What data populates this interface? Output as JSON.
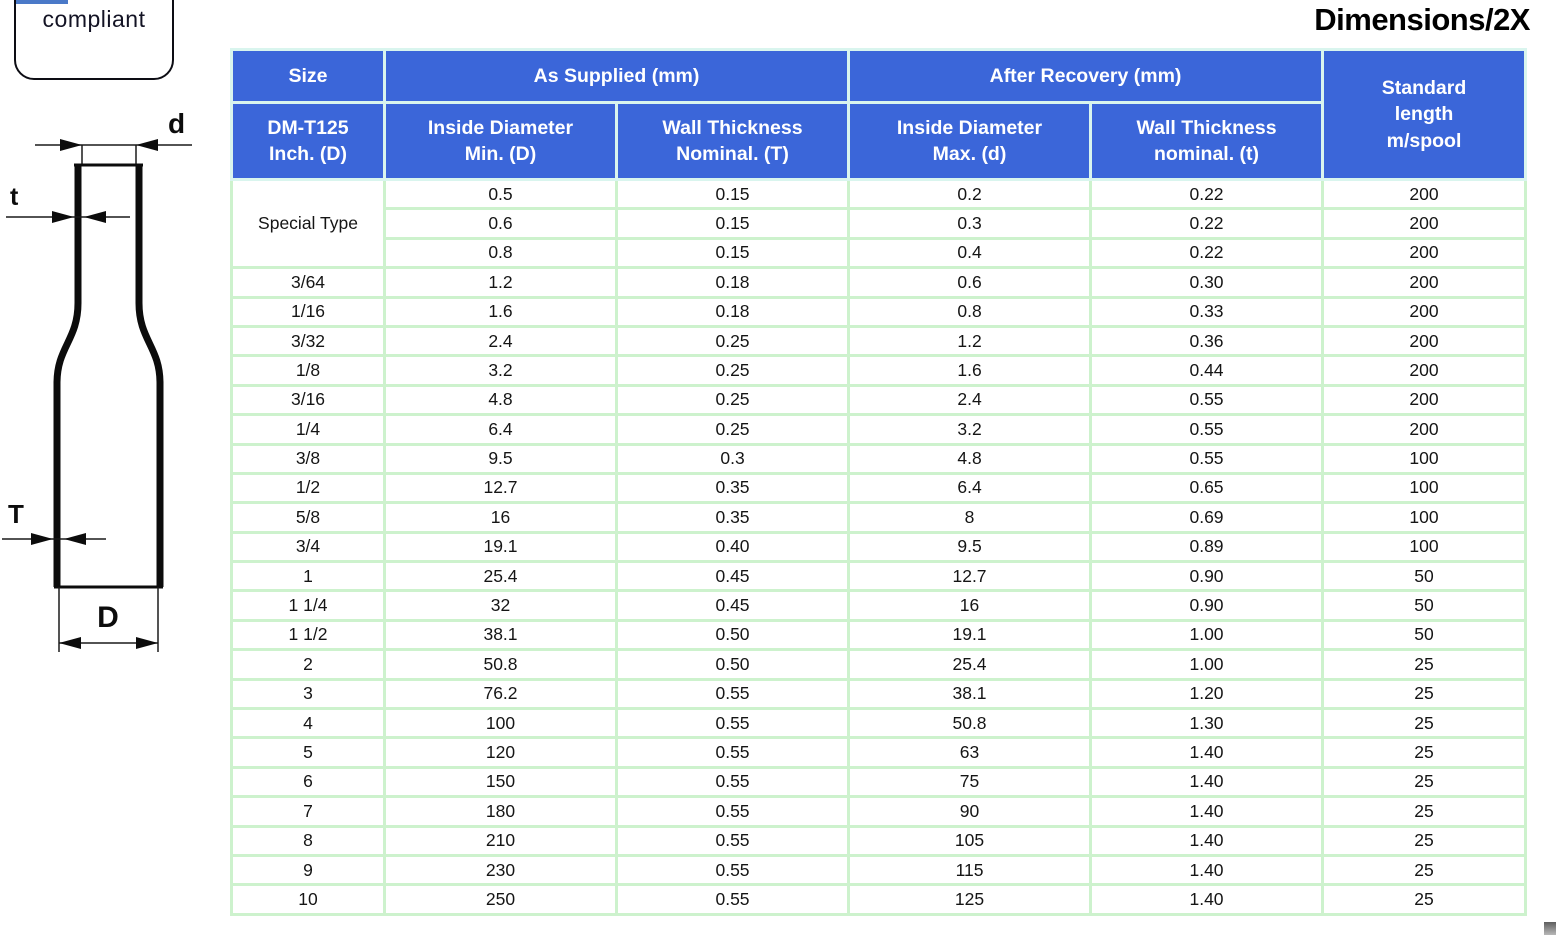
{
  "page": {
    "title": "Dimensions/2X",
    "compliance_label": "compliant"
  },
  "diagram": {
    "label_recovered_diameter": "d",
    "label_recovered_wall": "t",
    "label_supplied_wall": "T",
    "label_supplied_diameter": "D"
  },
  "table": {
    "header": {
      "size_group": "Size",
      "size_sub": "DM-T125\nInch. (D)",
      "as_supplied_group": "As Supplied (mm)",
      "after_recovery_group": "After Recovery (mm)",
      "standard_length": "Standard\nlength\nm/spool",
      "inside_diameter_min": "Inside Diameter\nMin. (D)",
      "wall_thickness_nominal_T": "Wall Thickness\nNominal. (T)",
      "inside_diameter_max": "Inside Diameter\nMax. (d)",
      "wall_thickness_nominal_t": "Wall Thickness\nnominal. (t)"
    },
    "rows": [
      {
        "size": "Special Type",
        "rowspan": 3,
        "values": [
          "0.5",
          "0.15",
          "0.2",
          "0.22",
          "200"
        ]
      },
      {
        "values": [
          "0.6",
          "0.15",
          "0.3",
          "0.22",
          "200"
        ]
      },
      {
        "values": [
          "0.8",
          "0.15",
          "0.4",
          "0.22",
          "200"
        ]
      },
      {
        "size": "3/64",
        "values": [
          "1.2",
          "0.18",
          "0.6",
          "0.30",
          "200"
        ]
      },
      {
        "size": "1/16",
        "values": [
          "1.6",
          "0.18",
          "0.8",
          "0.33",
          "200"
        ]
      },
      {
        "size": "3/32",
        "values": [
          "2.4",
          "0.25",
          "1.2",
          "0.36",
          "200"
        ]
      },
      {
        "size": "1/8",
        "values": [
          "3.2",
          "0.25",
          "1.6",
          "0.44",
          "200"
        ]
      },
      {
        "size": "3/16",
        "values": [
          "4.8",
          "0.25",
          "2.4",
          "0.55",
          "200"
        ]
      },
      {
        "size": "1/4",
        "values": [
          "6.4",
          "0.25",
          "3.2",
          "0.55",
          "200"
        ]
      },
      {
        "size": "3/8",
        "values": [
          "9.5",
          "0.3",
          "4.8",
          "0.55",
          "100"
        ]
      },
      {
        "size": "1/2",
        "values": [
          "12.7",
          "0.35",
          "6.4",
          "0.65",
          "100"
        ]
      },
      {
        "size": "5/8",
        "values": [
          "16",
          "0.35",
          "8",
          "0.69",
          "100"
        ]
      },
      {
        "size": "3/4",
        "values": [
          "19.1",
          "0.40",
          "9.5",
          "0.89",
          "100"
        ]
      },
      {
        "size": "1",
        "values": [
          "25.4",
          "0.45",
          "12.7",
          "0.90",
          "50"
        ]
      },
      {
        "size": "1 1/4",
        "values": [
          "32",
          "0.45",
          "16",
          "0.90",
          "50"
        ]
      },
      {
        "size": "1 1/2",
        "values": [
          "38.1",
          "0.50",
          "19.1",
          "1.00",
          "50"
        ]
      },
      {
        "size": "2",
        "values": [
          "50.8",
          "0.50",
          "25.4",
          "1.00",
          "25"
        ]
      },
      {
        "size": "3",
        "values": [
          "76.2",
          "0.55",
          "38.1",
          "1.20",
          "25"
        ]
      },
      {
        "size": "4",
        "values": [
          "100",
          "0.55",
          "50.8",
          "1.30",
          "25"
        ]
      },
      {
        "size": "5",
        "values": [
          "120",
          "0.55",
          "63",
          "1.40",
          "25"
        ]
      },
      {
        "size": "6",
        "values": [
          "150",
          "0.55",
          "75",
          "1.40",
          "25"
        ]
      },
      {
        "size": "7",
        "values": [
          "180",
          "0.55",
          "90",
          "1.40",
          "25"
        ]
      },
      {
        "size": "8",
        "values": [
          "210",
          "0.55",
          "105",
          "1.40",
          "25"
        ]
      },
      {
        "size": "9",
        "values": [
          "230",
          "0.55",
          "115",
          "1.40",
          "25"
        ]
      },
      {
        "size": "10",
        "values": [
          "250",
          "0.55",
          "125",
          "1.40",
          "25"
        ]
      }
    ]
  },
  "colors": {
    "header_bg": "#3b66d9",
    "header_text": "#ffffff",
    "body_border": "#cdf2cd",
    "header_border": "#d9f5ee",
    "accent_bar": "#4a79c8"
  }
}
